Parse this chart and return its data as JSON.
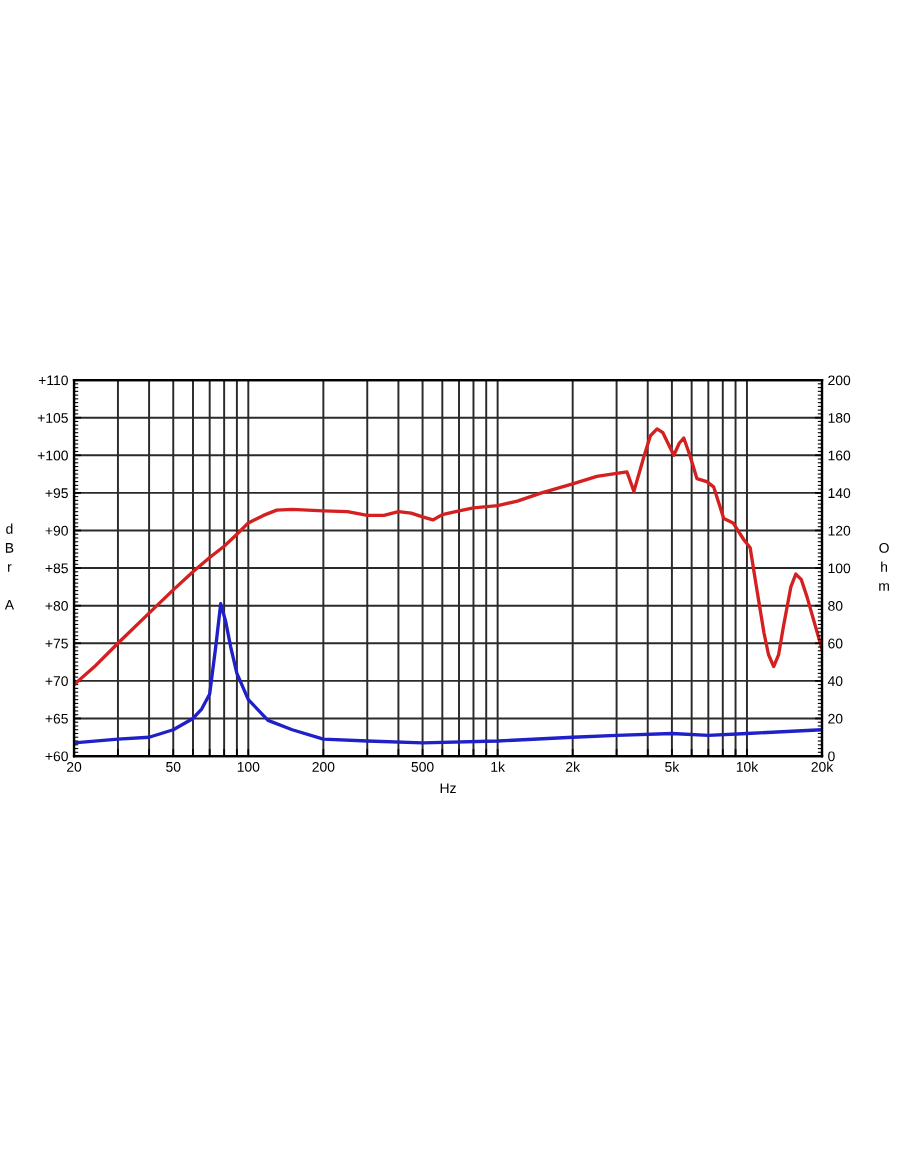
{
  "chart_data": {
    "type": "line",
    "xlabel": "Hz",
    "ylabel": "dBr A",
    "y2label": "Ohm",
    "log": "x",
    "grid": true,
    "marker": "none",
    "line_style": "solid",
    "xlim": [
      20,
      20000
    ],
    "xticks": [
      20,
      {
        "value": 30,
        "label": null
      },
      {
        "value": 40,
        "label": null
      },
      50,
      {
        "value": 60,
        "label": null
      },
      {
        "value": 70,
        "label": null
      },
      {
        "value": 80,
        "label": null
      },
      {
        "value": 90,
        "label": null
      },
      100,
      200,
      {
        "value": 300,
        "label": null
      },
      {
        "value": 400,
        "label": null
      },
      500,
      {
        "value": 600,
        "label": null
      },
      {
        "value": 700,
        "label": null
      },
      {
        "value": 800,
        "label": null
      },
      {
        "value": 900,
        "label": null
      },
      {
        "value": 1000,
        "label": "1k"
      },
      {
        "value": 2000,
        "label": "2k"
      },
      {
        "value": 3000,
        "label": null
      },
      {
        "value": 4000,
        "label": null
      },
      {
        "value": 5000,
        "label": "5k"
      },
      {
        "value": 6000,
        "label": null
      },
      {
        "value": 7000,
        "label": null
      },
      {
        "value": 8000,
        "label": null
      },
      {
        "value": 9000,
        "label": null
      },
      {
        "value": 10000,
        "label": "10k"
      },
      {
        "value": 20000,
        "label": "20k"
      }
    ],
    "ylim": [
      60,
      110
    ],
    "yticks": [
      {
        "value": 60,
        "label": "+60"
      },
      {
        "value": 65,
        "label": "+65"
      },
      {
        "value": 70,
        "label": "+70"
      },
      {
        "value": 75,
        "label": "+75"
      },
      {
        "value": 80,
        "label": "+80"
      },
      {
        "value": 85,
        "label": "+85"
      },
      {
        "value": 90,
        "label": "+90"
      },
      {
        "value": 95,
        "label": "+95"
      },
      {
        "value": 100,
        "label": "+100"
      },
      {
        "value": 105,
        "label": "+105"
      },
      {
        "value": 110,
        "label": "+110"
      }
    ],
    "y2lim": [
      0,
      200
    ],
    "y2ticks": [
      0,
      20,
      40,
      60,
      80,
      100,
      120,
      140,
      160,
      180,
      200
    ],
    "series": [
      {
        "color": "#d42020",
        "x": [
          20,
          24,
          30,
          40,
          50,
          60,
          70,
          80,
          90,
          100,
          115,
          130,
          150,
          200,
          250,
          300,
          350,
          400,
          450,
          500,
          550,
          600,
          700,
          800,
          1000,
          1200,
          1500,
          2000,
          2500,
          3000,
          3300,
          3520,
          3860,
          4100,
          4360,
          4600,
          5090,
          5350,
          5580,
          5900,
          6300,
          6900,
          7350,
          8070,
          8800,
          9700,
          10300,
          10900,
          11700,
          12200,
          12800,
          13400,
          14000,
          15000,
          15700,
          16500,
          17400,
          20000
        ],
        "values": [
          69.5,
          71.8,
          75.0,
          79.0,
          82.1,
          84.5,
          86.4,
          87.9,
          89.5,
          91.0,
          92.0,
          92.7,
          92.8,
          92.6,
          92.5,
          92.0,
          92.0,
          92.5,
          92.3,
          91.8,
          91.4,
          92.1,
          92.6,
          93.0,
          93.3,
          93.9,
          95.0,
          96.2,
          97.2,
          97.6,
          97.8,
          95.2,
          99.8,
          102.6,
          103.5,
          103.0,
          100.0,
          101.6,
          102.3,
          100.0,
          96.9,
          96.5,
          95.8,
          91.6,
          91.0,
          88.8,
          87.7,
          82.6,
          76.4,
          73.5,
          71.9,
          73.5,
          77.2,
          82.5,
          84.2,
          83.5,
          81.2,
          74.2
        ]
      },
      {
        "color": "#2020c8",
        "axis": "y2",
        "x": [
          20,
          30,
          40,
          50,
          60,
          65,
          70,
          74,
          77.5,
          81,
          85,
          90,
          100,
          120,
          150,
          200,
          300,
          500,
          1000,
          2000,
          3000,
          5000,
          7000,
          10000,
          20000
        ],
        "values": [
          7,
          9,
          10,
          14,
          20,
          25,
          33,
          58,
          81,
          72,
          58,
          44,
          30,
          19,
          14,
          9,
          8,
          7,
          8,
          10,
          11,
          12,
          11,
          12,
          14
        ]
      }
    ]
  }
}
